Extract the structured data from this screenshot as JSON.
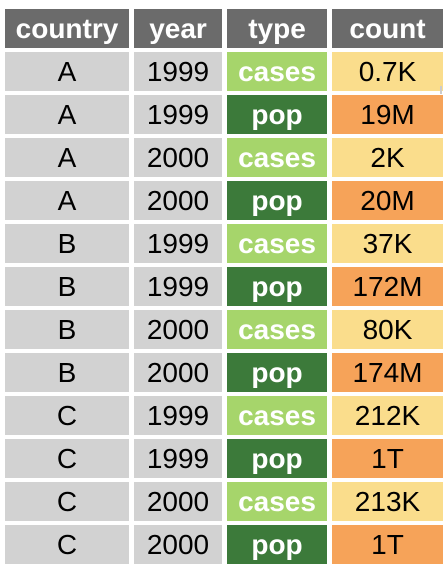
{
  "table": {
    "headers": [
      "country",
      "year",
      "type",
      "count"
    ],
    "rows": [
      {
        "country": "A",
        "year": "1999",
        "type": "cases",
        "count": "0.7K"
      },
      {
        "country": "A",
        "year": "1999",
        "type": "pop",
        "count": "19M"
      },
      {
        "country": "A",
        "year": "2000",
        "type": "cases",
        "count": "2K"
      },
      {
        "country": "A",
        "year": "2000",
        "type": "pop",
        "count": "20M"
      },
      {
        "country": "B",
        "year": "1999",
        "type": "cases",
        "count": "37K"
      },
      {
        "country": "B",
        "year": "1999",
        "type": "pop",
        "count": "172M"
      },
      {
        "country": "B",
        "year": "2000",
        "type": "cases",
        "count": "80K"
      },
      {
        "country": "B",
        "year": "2000",
        "type": "pop",
        "count": "174M"
      },
      {
        "country": "C",
        "year": "1999",
        "type": "cases",
        "count": "212K"
      },
      {
        "country": "C",
        "year": "1999",
        "type": "pop",
        "count": "1T"
      },
      {
        "country": "C",
        "year": "2000",
        "type": "cases",
        "count": "213K"
      },
      {
        "country": "C",
        "year": "2000",
        "type": "pop",
        "count": "1T"
      }
    ]
  },
  "colors": {
    "header_bg": "#6b6b6b",
    "id_cell_bg": "#d2d2d2",
    "type_cases_bg": "#a6d56b",
    "type_pop_bg": "#3c7a3a",
    "count_cases_bg": "#fadd8c",
    "count_pop_bg": "#f6a359"
  }
}
